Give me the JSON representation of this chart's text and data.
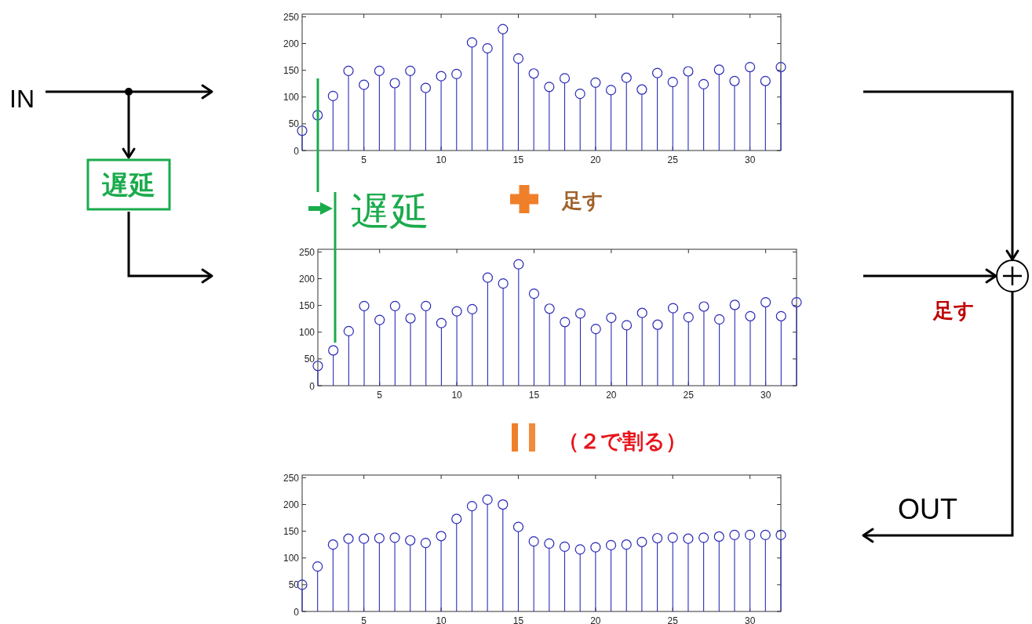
{
  "chart_data": [
    {
      "type": "lollipop",
      "marker": "circle",
      "xlim": [
        1,
        32
      ],
      "ylim": [
        0,
        255
      ],
      "xticks": [
        5,
        10,
        15,
        20,
        25,
        30
      ],
      "yticks": [
        0,
        50,
        100,
        150,
        200,
        250
      ],
      "x": [
        1,
        2,
        3,
        4,
        5,
        6,
        7,
        8,
        9,
        10,
        11,
        12,
        13,
        14,
        15,
        16,
        17,
        18,
        19,
        20,
        21,
        22,
        23,
        24,
        25,
        26,
        27,
        28,
        29,
        30,
        31,
        32
      ],
      "series": [
        {
          "color": "#2b2bb8",
          "values": [
            37,
            66,
            102,
            149,
            123,
            149,
            126,
            149,
            117,
            139,
            143,
            202,
            191,
            227,
            172,
            144,
            119,
            135,
            106,
            127,
            113,
            136,
            114,
            145,
            128,
            148,
            124,
            151,
            130,
            156,
            130,
            156
          ]
        }
      ]
    },
    {
      "type": "lollipop",
      "marker": "circle",
      "xlim": [
        1,
        32
      ],
      "ylim": [
        0,
        255
      ],
      "xticks": [
        5,
        10,
        15,
        20,
        25,
        30
      ],
      "yticks": [
        0,
        50,
        100,
        150,
        200,
        250
      ],
      "x": [
        1,
        2,
        3,
        4,
        5,
        6,
        7,
        8,
        9,
        10,
        11,
        12,
        13,
        14,
        15,
        16,
        17,
        18,
        19,
        20,
        21,
        22,
        23,
        24,
        25,
        26,
        27,
        28,
        29,
        30,
        31,
        32
      ],
      "series": [
        {
          "color": "#2b2bb8",
          "values": [
            37,
            66,
            102,
            149,
            123,
            149,
            126,
            149,
            117,
            139,
            143,
            202,
            191,
            227,
            172,
            144,
            119,
            135,
            106,
            127,
            113,
            136,
            114,
            145,
            128,
            148,
            124,
            151,
            130,
            156,
            130,
            156
          ]
        }
      ]
    },
    {
      "type": "lollipop",
      "marker": "circle",
      "xlim": [
        1,
        32
      ],
      "ylim": [
        0,
        255
      ],
      "xticks": [
        5,
        10,
        15,
        20,
        25,
        30
      ],
      "yticks": [
        0,
        50,
        100,
        150,
        200,
        250
      ],
      "x": [
        1,
        2,
        3,
        4,
        5,
        6,
        7,
        8,
        9,
        10,
        11,
        12,
        13,
        14,
        15,
        16,
        17,
        18,
        19,
        20,
        21,
        22,
        23,
        24,
        25,
        26,
        27,
        28,
        29,
        30,
        31,
        32
      ],
      "series": [
        {
          "color": "#2b2bb8",
          "values": [
            50,
            84,
            125,
            136,
            136,
            137,
            138,
            133,
            128,
            141,
            173,
            197,
            209,
            200,
            158,
            131,
            127,
            121,
            116,
            120,
            124,
            125,
            130,
            137,
            138,
            136,
            138,
            140,
            143,
            143,
            143,
            143
          ]
        }
      ]
    },
    {
      "type": "other",
      "annotations": [
        "IN",
        "遅延",
        "遅延",
        "足す",
        "足す",
        "（２で割る）",
        "OUT"
      ]
    }
  ]
}
